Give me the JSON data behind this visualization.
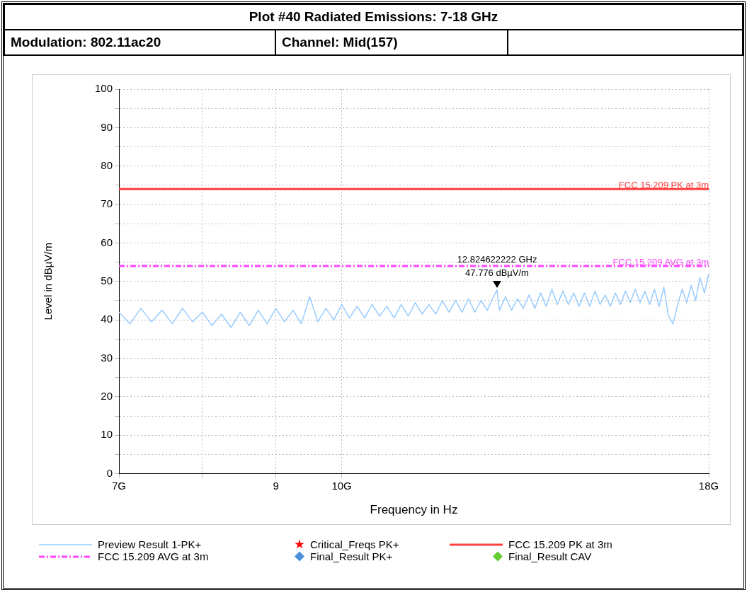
{
  "chart_data": {
    "type": "line",
    "title": "Plot #40 Radiated Emissions: 7-18 GHz",
    "xlabel": "Frequency in Hz",
    "ylabel": "Level in dBµV/m",
    "log": "x",
    "grid": true,
    "legend": "bottom",
    "xlim": [
      7,
      18
    ],
    "xticks": [
      {
        "value": 7,
        "label": "7G"
      },
      {
        "value": 8,
        "label": null
      },
      9,
      {
        "value": 10,
        "label": "10G"
      },
      {
        "value": 18,
        "label": "18G"
      }
    ],
    "ylim": [
      0,
      100
    ],
    "yticks": [
      0,
      {
        "value": 5,
        "label": null
      },
      10,
      {
        "value": 15,
        "label": null
      },
      20,
      {
        "value": 25,
        "label": null
      },
      30,
      {
        "value": 35,
        "label": null
      },
      40,
      {
        "value": 45,
        "label": null
      },
      50,
      {
        "value": 55,
        "label": null
      },
      60,
      {
        "value": 65,
        "label": null
      },
      70,
      {
        "value": 75,
        "label": null
      },
      80,
      {
        "value": 85,
        "label": null
      },
      90,
      {
        "value": 95,
        "label": null
      },
      100
    ],
    "series": [
      {
        "name": "Preview Result 1-PK+",
        "color": "#99ccff",
        "marker": "none",
        "line_style": "solid",
        "x": [
          7,
          7.125,
          7.25,
          7.375,
          7.5,
          7.625,
          7.75,
          7.875,
          8,
          8.125,
          8.25,
          8.375,
          8.5,
          8.625,
          8.75,
          8.875,
          9,
          9.125,
          9.25,
          9.375,
          9.5,
          9.625,
          9.75,
          9.875,
          10,
          10.125,
          10.25,
          10.375,
          10.5,
          10.625,
          10.75,
          10.875,
          11,
          11.125,
          11.25,
          11.375,
          11.5,
          11.625,
          11.75,
          11.875,
          12,
          12.125,
          12.25,
          12.375,
          12.5,
          12.625,
          12.75,
          12.82,
          12.875,
          13,
          13.125,
          13.25,
          13.375,
          13.5,
          13.625,
          13.75,
          13.875,
          14,
          14.125,
          14.25,
          14.375,
          14.5,
          14.625,
          14.75,
          14.875,
          15,
          15.125,
          15.25,
          15.375,
          15.5,
          15.625,
          15.75,
          15.875,
          16,
          16.125,
          16.25,
          16.375,
          16.5,
          16.625,
          16.75,
          16.875,
          17,
          17.125,
          17.25,
          17.375,
          17.5,
          17.625,
          17.75,
          17.875,
          18
        ],
        "values": [
          42,
          39,
          43,
          39.5,
          42.5,
          39,
          43,
          39.5,
          42,
          38.5,
          41.5,
          38,
          42,
          38.5,
          42.5,
          39,
          43,
          39.5,
          42.5,
          39,
          46,
          39.5,
          43,
          40,
          44,
          40.5,
          43.5,
          40.5,
          44,
          41,
          43.5,
          40.5,
          44,
          41,
          44.5,
          41.5,
          44,
          41.5,
          45,
          42,
          45,
          42,
          45.5,
          42,
          45,
          42.5,
          46,
          47.8,
          42.5,
          46,
          42.5,
          45.5,
          43,
          46.5,
          43,
          47,
          43.5,
          48,
          44,
          47.5,
          44,
          47,
          43.5,
          47,
          43.5,
          47.5,
          44,
          46.5,
          43.5,
          47,
          44,
          47.5,
          44.5,
          48,
          44.5,
          47.5,
          44,
          48,
          43.5,
          48.5,
          41,
          39,
          44,
          48,
          44.5,
          49,
          45,
          51,
          47,
          52
        ]
      },
      {
        "name": "Critical_Freqs PK+",
        "type": "scatter",
        "color": "#ff0000",
        "marker": "star"
      },
      {
        "name": "FCC 15.209 PK at 3m",
        "color": "#ff4040",
        "marker": "none",
        "line_style": "solid",
        "x": [
          7,
          18
        ],
        "values": [
          74,
          74
        ]
      },
      {
        "name": "FCC 15.209 AVG at 3m",
        "color": "#ff44ff",
        "marker": "none",
        "line_style": "dashed",
        "x": [
          7,
          18
        ],
        "values": [
          54,
          54
        ]
      },
      {
        "name": "Final_Result PK+",
        "type": "scatter",
        "color": "#4a90d9",
        "marker": "diamond"
      },
      {
        "name": "Final_Result CAV",
        "type": "scatter",
        "color": "#66cc33",
        "marker": "diamond"
      }
    ],
    "annotations": [
      "Modulation: 802.11ac20",
      "Channel: Mid(157)",
      {
        "text": "FCC 15.209 PK at 3m",
        "y": 74
      },
      {
        "text": "FCC 15.209 AVG at 3m",
        "y": 54
      },
      {
        "text": "12.824622222 GHz\n47.776 dBµV/m",
        "x": 12.824622222,
        "y": 47.776
      }
    ]
  }
}
